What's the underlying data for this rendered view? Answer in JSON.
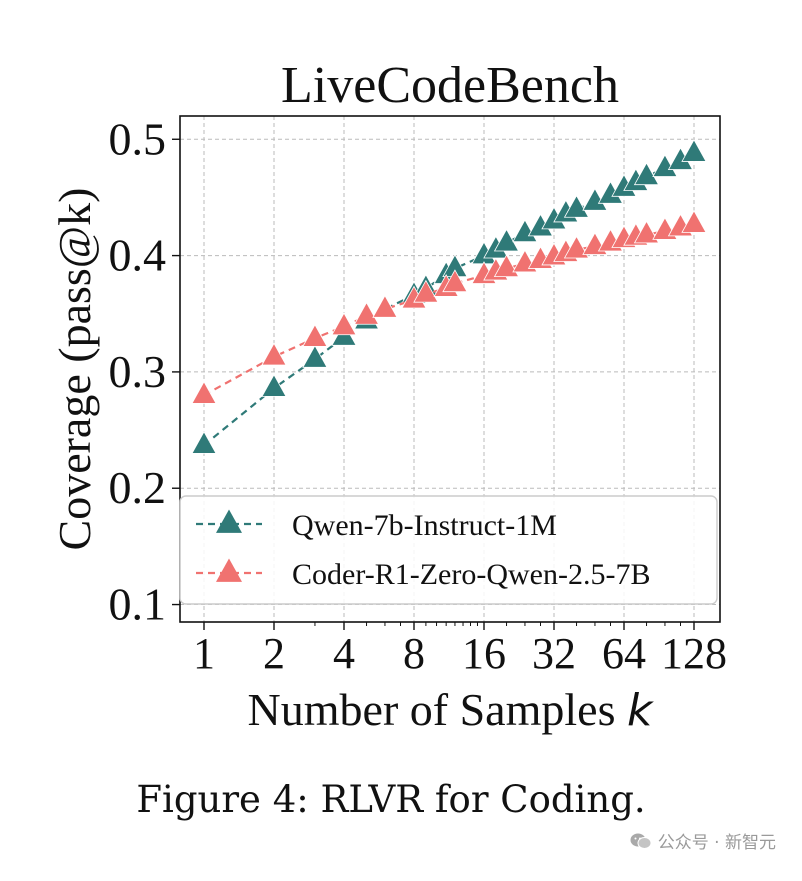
{
  "chart_data": {
    "type": "line",
    "title": "LiveCodeBench",
    "xlabel": "Number of Samples",
    "xlabel_var": "k",
    "ylabel": "Coverage (pass@k)",
    "x_scale": "log2",
    "x_ticks": [
      "1",
      "2",
      "4",
      "8",
      "16",
      "32",
      "64",
      "128"
    ],
    "y_ticks": [
      "0.1",
      "0.2",
      "0.3",
      "0.4",
      "0.5"
    ],
    "ylim": [
      0.085,
      0.52
    ],
    "grid": true,
    "legend_position": "lower-right",
    "x": [
      1,
      2,
      3,
      4,
      5,
      6,
      8,
      9,
      11,
      12,
      16,
      18,
      20,
      24,
      28,
      32,
      36,
      40,
      48,
      56,
      64,
      72,
      80,
      96,
      112,
      128
    ],
    "series": [
      {
        "name": "Qwen-7b-Instruct-1M",
        "color": "#2f7a78",
        "marker": "triangle",
        "linestyle": "dashed",
        "values": [
          0.237,
          0.286,
          0.311,
          0.33,
          0.344,
          0.354,
          0.366,
          0.372,
          0.383,
          0.389,
          0.4,
          0.405,
          0.411,
          0.419,
          0.424,
          0.43,
          0.436,
          0.44,
          0.446,
          0.452,
          0.458,
          0.463,
          0.468,
          0.475,
          0.481,
          0.488
        ]
      },
      {
        "name": "Coder-R1-Zero-Qwen-2.5-7B",
        "color": "#f07270",
        "marker": "triangle",
        "linestyle": "dashed",
        "values": [
          0.28,
          0.313,
          0.329,
          0.339,
          0.348,
          0.354,
          0.362,
          0.367,
          0.372,
          0.376,
          0.383,
          0.386,
          0.389,
          0.393,
          0.396,
          0.399,
          0.402,
          0.405,
          0.408,
          0.411,
          0.414,
          0.416,
          0.418,
          0.421,
          0.424,
          0.427
        ]
      }
    ]
  },
  "caption": "Figure 4: RLVR for Coding.",
  "watermark": "公众号 · 新智元"
}
